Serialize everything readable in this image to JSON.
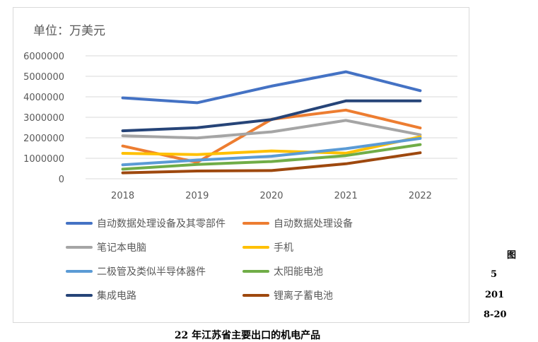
{
  "chart_data": {
    "type": "line",
    "unit_label": "单位：万美元",
    "x": [
      "2018",
      "2019",
      "2020",
      "2021",
      "2022"
    ],
    "ylim": [
      0,
      6000000
    ],
    "yticks": [
      "0",
      "1000000",
      "2000000",
      "3000000",
      "4000000",
      "5000000",
      "6000000"
    ],
    "grid": true,
    "legend_position": "bottom",
    "series": [
      {
        "name": "自动数据处理设备及其零部件",
        "color": "#4472C4",
        "values": [
          3950000,
          3710000,
          4520000,
          5220000,
          4300000
        ]
      },
      {
        "name": "自动数据处理设备",
        "color": "#ED7D31",
        "values": [
          1600000,
          800000,
          2900000,
          3350000,
          2480000
        ]
      },
      {
        "name": "笔记本电脑",
        "color": "#A5A5A5",
        "values": [
          2100000,
          1990000,
          2290000,
          2850000,
          2150000
        ]
      },
      {
        "name": "手机",
        "color": "#FFC000",
        "values": [
          1240000,
          1180000,
          1360000,
          1250000,
          2050000
        ]
      },
      {
        "name": "二极管及类似半导体器件",
        "color": "#5B9BD5",
        "values": [
          680000,
          910000,
          1100000,
          1470000,
          1970000
        ]
      },
      {
        "name": "太阳能电池",
        "color": "#70AD47",
        "values": [
          470000,
          700000,
          840000,
          1130000,
          1670000
        ]
      },
      {
        "name": "集成电路",
        "color": "#264478",
        "values": [
          2340000,
          2490000,
          2890000,
          3800000,
          3800000
        ]
      },
      {
        "name": "锂离子蓄电池",
        "color": "#9E480E",
        "values": [
          290000,
          380000,
          400000,
          730000,
          1270000
        ]
      }
    ]
  },
  "side_labels": [
    "图",
    "5",
    "201",
    "8-20"
  ],
  "caption": "22 年江苏省主要出口的机电产品"
}
